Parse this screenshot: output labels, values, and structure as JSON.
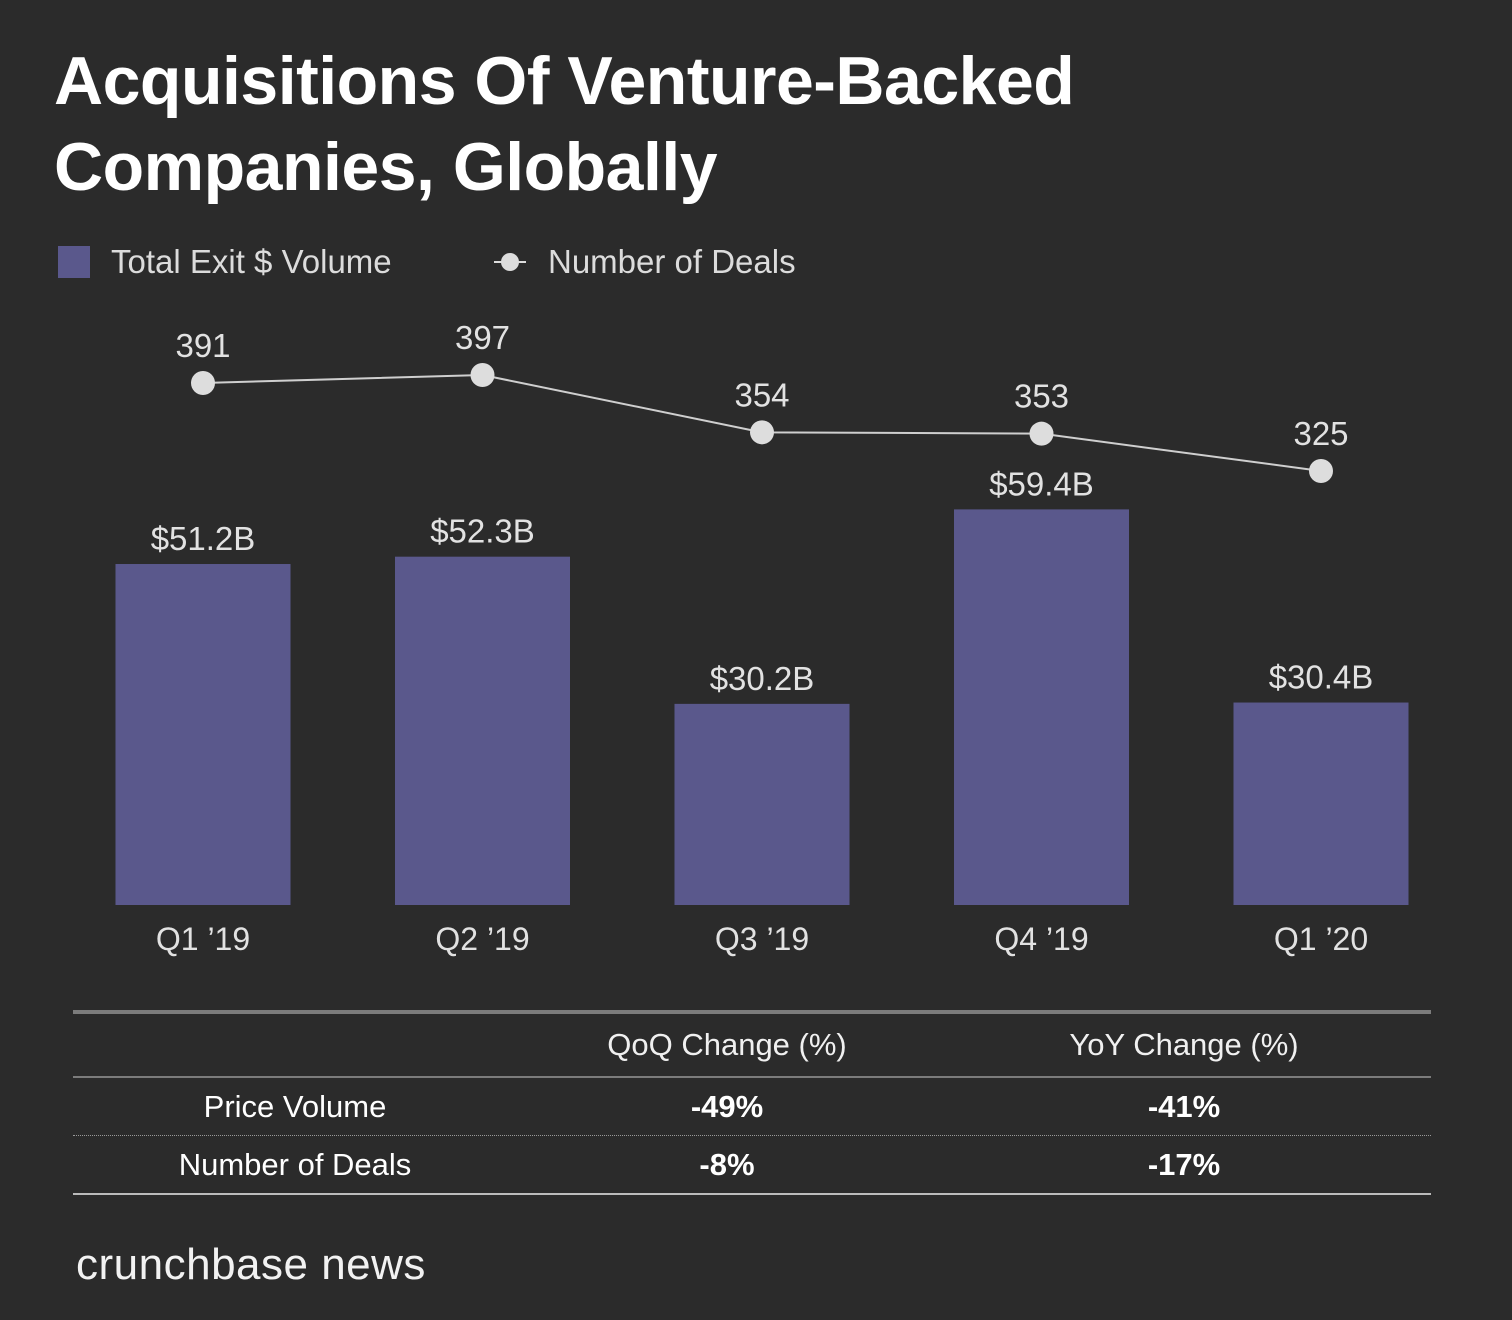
{
  "chart_data": {
    "type": "bar+line",
    "title": "Acquisitions Of Venture-Backed Companies, Globally",
    "categories": [
      "Q1 ’19",
      "Q2 ’19",
      "Q3 ’19",
      "Q4 ’19",
      "Q1 ’20"
    ],
    "series": [
      {
        "name": "Total Exit $ Volume",
        "type": "bar",
        "unit": "USD billions",
        "values": [
          51.2,
          52.3,
          30.2,
          59.4,
          30.4
        ],
        "labels": [
          "$51.2B",
          "$52.3B",
          "$30.2B",
          "$59.4B",
          "$30.4B"
        ],
        "color": "#5a588c"
      },
      {
        "name": "Number of Deals",
        "type": "line",
        "values": [
          391,
          397,
          354,
          353,
          325
        ],
        "labels": [
          "391",
          "397",
          "354",
          "353",
          "325"
        ],
        "color": "#dddddd"
      }
    ],
    "legend_position": "top-left",
    "grid": false,
    "y_axis_visible": false
  },
  "table": {
    "headers": [
      "",
      "QoQ Change (%)",
      "YoY Change (%)"
    ],
    "rows": [
      {
        "label": "Price Volume",
        "qoq": "-49%",
        "yoy": "-41%"
      },
      {
        "label": "Number of Deals",
        "qoq": "-8%",
        "yoy": "-17%"
      }
    ]
  },
  "brand": "crunchbase news",
  "colors": {
    "background": "#2b2b2b",
    "bar": "#5a588c",
    "line": "#dddddd",
    "text": "#e2e2e2"
  }
}
